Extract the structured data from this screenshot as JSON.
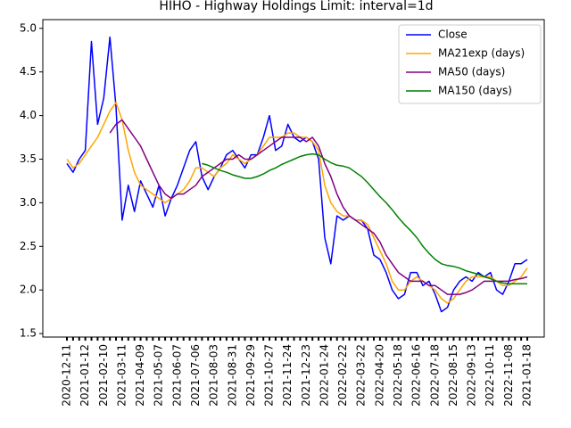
{
  "chart_data": {
    "type": "line",
    "title": "HIHO - Highway Holdings Limit: interval=1d",
    "categories": [
      "2020-12-11",
      null,
      null,
      "2021-01-12",
      null,
      null,
      "2021-02-10",
      null,
      null,
      "2021-03-11",
      null,
      null,
      "2021-04-09",
      null,
      null,
      "2021-05-07",
      null,
      null,
      "2021-06-07",
      null,
      null,
      "2021-07-06",
      null,
      null,
      "2021-08-03",
      null,
      null,
      "2021-08-31",
      null,
      null,
      "2021-09-29",
      null,
      null,
      "2021-10-27",
      null,
      null,
      "2021-11-24",
      null,
      null,
      "2021-12-23",
      null,
      null,
      "2022-01-24",
      null,
      null,
      "2022-02-22",
      null,
      null,
      "2022-03-22",
      null,
      null,
      "2022-04-20",
      null,
      null,
      "2022-05-18",
      null,
      null,
      "2022-06-16",
      null,
      null,
      "2022-07-18",
      null,
      null,
      "2022-08-15",
      null,
      null,
      "2022-09-13",
      null,
      null,
      "2022-10-11",
      null,
      null,
      "2022-11-08",
      null,
      null,
      "2021-01-18"
    ],
    "series": [
      {
        "name": "Close",
        "color": "#0000ff",
        "values": [
          3.45,
          3.35,
          3.5,
          3.6,
          4.85,
          3.9,
          4.2,
          4.9,
          4.1,
          2.8,
          3.2,
          2.9,
          3.25,
          3.1,
          2.95,
          3.2,
          2.85,
          3.05,
          3.2,
          3.4,
          3.6,
          3.7,
          3.3,
          3.15,
          3.3,
          3.4,
          3.55,
          3.6,
          3.5,
          3.4,
          3.55,
          3.55,
          3.75,
          4.0,
          3.6,
          3.65,
          3.9,
          3.75,
          3.7,
          3.75,
          3.7,
          3.5,
          2.6,
          2.3,
          2.85,
          2.8,
          2.85,
          2.8,
          2.8,
          2.7,
          2.4,
          2.35,
          2.2,
          2.0,
          1.9,
          1.95,
          2.2,
          2.2,
          2.05,
          2.1,
          1.95,
          1.75,
          1.8,
          2.0,
          2.1,
          2.15,
          2.1,
          2.2,
          2.15,
          2.2,
          2.0,
          1.95,
          2.1,
          2.3,
          2.3,
          2.35
        ]
      },
      {
        "name": "MA21exp (days)",
        "color": "#ffa500",
        "values": [
          3.5,
          3.4,
          3.45,
          3.55,
          3.65,
          3.75,
          3.9,
          4.05,
          4.15,
          3.95,
          3.6,
          3.35,
          3.2,
          3.15,
          3.1,
          3.05,
          3.0,
          3.05,
          3.1,
          3.15,
          3.25,
          3.4,
          3.4,
          3.35,
          3.3,
          3.4,
          3.45,
          3.55,
          3.5,
          3.45,
          3.5,
          3.55,
          3.65,
          3.75,
          3.75,
          3.75,
          3.8,
          3.8,
          3.75,
          3.75,
          3.7,
          3.6,
          3.2,
          3.0,
          2.9,
          2.85,
          2.85,
          2.8,
          2.8,
          2.75,
          2.6,
          2.45,
          2.3,
          2.1,
          2.0,
          2.0,
          2.1,
          2.15,
          2.1,
          2.05,
          2.0,
          1.9,
          1.85,
          1.9,
          2.0,
          2.1,
          2.15,
          2.15,
          2.15,
          2.15,
          2.1,
          2.05,
          2.05,
          2.1,
          2.15,
          2.25
        ]
      },
      {
        "name": "MA50 (days)",
        "color": "#800080",
        "values": [
          null,
          null,
          null,
          null,
          null,
          null,
          null,
          3.8,
          3.9,
          3.95,
          3.85,
          3.75,
          3.65,
          3.5,
          3.35,
          3.2,
          3.1,
          3.05,
          3.1,
          3.1,
          3.15,
          3.2,
          3.3,
          3.35,
          3.4,
          3.45,
          3.5,
          3.5,
          3.55,
          3.5,
          3.5,
          3.55,
          3.6,
          3.65,
          3.7,
          3.75,
          3.75,
          3.75,
          3.75,
          3.7,
          3.75,
          3.65,
          3.45,
          3.3,
          3.1,
          2.95,
          2.85,
          2.8,
          2.75,
          2.7,
          2.65,
          2.55,
          2.4,
          2.3,
          2.2,
          2.15,
          2.1,
          2.1,
          2.1,
          2.05,
          2.05,
          2.0,
          1.95,
          1.95,
          1.95,
          1.97,
          2.0,
          2.05,
          2.1,
          2.1,
          2.1,
          2.1,
          2.1,
          2.12,
          2.13,
          2.15
        ]
      },
      {
        "name": "MA150 (days)",
        "color": "#008000",
        "values": [
          null,
          null,
          null,
          null,
          null,
          null,
          null,
          null,
          null,
          null,
          null,
          null,
          null,
          null,
          null,
          null,
          null,
          null,
          null,
          null,
          null,
          null,
          3.45,
          3.43,
          3.4,
          3.37,
          3.35,
          3.32,
          3.3,
          3.28,
          3.28,
          3.3,
          3.33,
          3.37,
          3.4,
          3.44,
          3.47,
          3.5,
          3.53,
          3.55,
          3.56,
          3.55,
          3.5,
          3.46,
          3.43,
          3.42,
          3.4,
          3.35,
          3.3,
          3.23,
          3.15,
          3.07,
          3.0,
          2.92,
          2.83,
          2.75,
          2.68,
          2.6,
          2.5,
          2.42,
          2.35,
          2.3,
          2.28,
          2.27,
          2.25,
          2.22,
          2.2,
          2.18,
          2.15,
          2.13,
          2.1,
          2.08,
          2.07,
          2.07,
          2.07,
          2.07
        ]
      }
    ],
    "ylim": [
      1.46,
      5.1
    ],
    "yticks": [
      1.5,
      {
        "value": 2,
        "label": "2.0"
      },
      2.5,
      {
        "value": 3,
        "label": "3.0"
      },
      3.5,
      {
        "value": 4,
        "label": "4.0"
      },
      4.5,
      {
        "value": 5,
        "label": "5.0"
      }
    ],
    "legend": "upper right"
  }
}
